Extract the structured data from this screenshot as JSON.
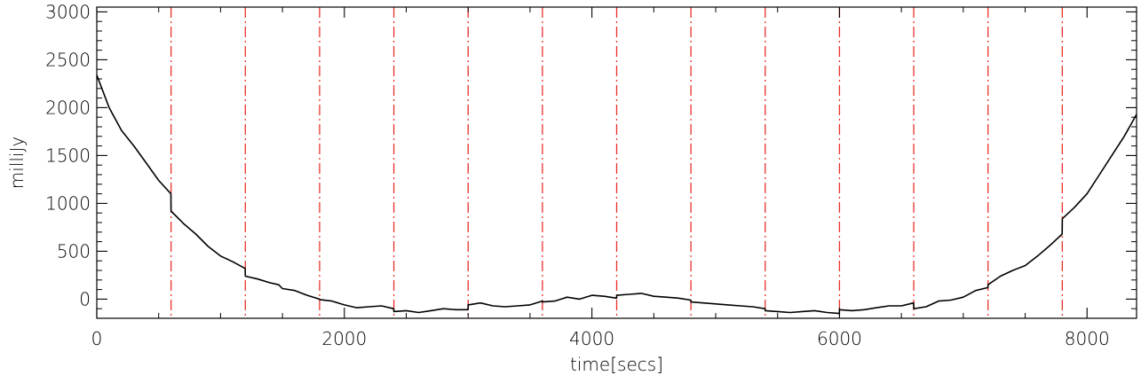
{
  "chart_data": {
    "type": "line",
    "title": "",
    "xlabel": "time[secs]",
    "ylabel": "milliJy",
    "xlim": [
      0,
      8400
    ],
    "ylim": [
      -200,
      3050
    ],
    "xticks": [
      0,
      2000,
      4000,
      6000,
      8000
    ],
    "yticks": [
      0,
      500,
      1000,
      1500,
      2000,
      2500,
      3000
    ],
    "grid": false,
    "legend": "none",
    "vlines": {
      "color": "#e8312a",
      "style": "dash-dot",
      "x": [
        600,
        1200,
        1800,
        2400,
        3000,
        3600,
        4200,
        4800,
        5400,
        6000,
        6600,
        7200,
        7800
      ]
    },
    "series": [
      {
        "color": "#000000",
        "x": [
          0,
          100,
          200,
          300,
          400,
          500,
          599,
          600,
          700,
          800,
          900,
          1000,
          1100,
          1199,
          1200,
          1300,
          1400,
          1470,
          1500,
          1600,
          1700,
          1799,
          1800,
          1900,
          2000,
          2100,
          2200,
          2300,
          2399,
          2400,
          2500,
          2600,
          2700,
          2800,
          2900,
          2999,
          3000,
          3100,
          3200,
          3300,
          3400,
          3500,
          3599,
          3600,
          3700,
          3800,
          3900,
          4000,
          4100,
          4199,
          4200,
          4300,
          4400,
          4500,
          4600,
          4700,
          4799,
          4800,
          4900,
          5000,
          5100,
          5200,
          5300,
          5399,
          5400,
          5500,
          5600,
          5700,
          5800,
          5900,
          5999,
          6000,
          6100,
          6200,
          6300,
          6400,
          6500,
          6599,
          6600,
          6700,
          6800,
          6900,
          7000,
          7100,
          7199,
          7200,
          7300,
          7400,
          7500,
          7600,
          7700,
          7799,
          7800,
          7900,
          8000,
          8100,
          8200,
          8300,
          8400
        ],
        "y": [
          2340,
          2000,
          1760,
          1600,
          1420,
          1240,
          1100,
          920,
          790,
          680,
          550,
          450,
          390,
          320,
          240,
          210,
          170,
          150,
          110,
          90,
          40,
          0,
          -5,
          -20,
          -60,
          -90,
          -80,
          -70,
          -100,
          -130,
          -120,
          -140,
          -120,
          -100,
          -110,
          -110,
          -60,
          -40,
          -70,
          -80,
          -70,
          -60,
          -20,
          -30,
          -20,
          20,
          0,
          40,
          30,
          10,
          40,
          50,
          60,
          30,
          20,
          10,
          -10,
          -30,
          -40,
          -50,
          -60,
          -70,
          -80,
          -100,
          -120,
          -130,
          -140,
          -130,
          -120,
          -140,
          -150,
          -110,
          -120,
          -110,
          -90,
          -70,
          -70,
          -40,
          -100,
          -80,
          -20,
          -10,
          20,
          90,
          120,
          150,
          240,
          300,
          350,
          450,
          560,
          680,
          840,
          960,
          1100,
          1300,
          1500,
          1700,
          1930
        ]
      }
    ]
  }
}
